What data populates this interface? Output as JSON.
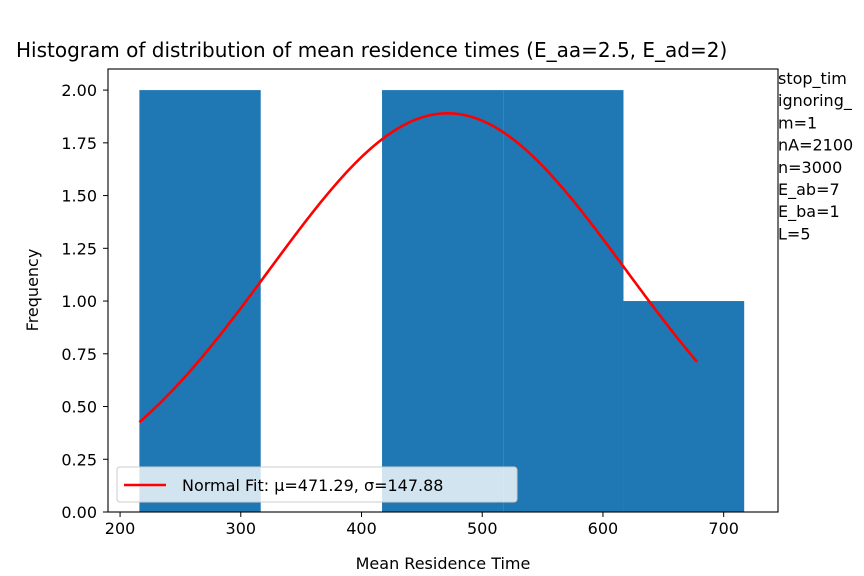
{
  "chart_data": {
    "type": "bar",
    "title": "Histogram of distribution of mean residence times (E_aa=2.5, E_ad=2)",
    "xlabel": "Mean Residence Time",
    "ylabel": "Frequency",
    "xlim": [
      190,
      745
    ],
    "ylim": [
      0,
      2.1
    ],
    "x_ticks": [
      200,
      300,
      400,
      500,
      600,
      700
    ],
    "y_ticks": [
      "0.00",
      "0.25",
      "0.50",
      "0.75",
      "1.00",
      "1.25",
      "1.50",
      "1.75",
      "2.00"
    ],
    "bins": [
      {
        "x0": 216,
        "x1": 316.5,
        "count": 2
      },
      {
        "x0": 316.5,
        "x1": 417,
        "count": 0
      },
      {
        "x0": 417,
        "x1": 517.5,
        "count": 2
      },
      {
        "x0": 517.5,
        "x1": 617,
        "count": 2
      },
      {
        "x0": 617,
        "x1": 717,
        "count": 1
      }
    ],
    "bar_color": "#1f77b4",
    "fit": {
      "type": "normal",
      "mu": 471.29,
      "sigma": 147.88,
      "x_range": [
        216,
        678
      ],
      "scale": 2.84,
      "color": "#ff0000",
      "label": "Normal Fit: μ=471.29, σ=147.88"
    },
    "legend_position": "lower-left",
    "side_text": [
      "stop_tim",
      "ignoring_",
      "m=1",
      "nA=2100",
      "n=3000",
      "E_ab=7",
      "E_ba=1",
      "L=5"
    ]
  }
}
